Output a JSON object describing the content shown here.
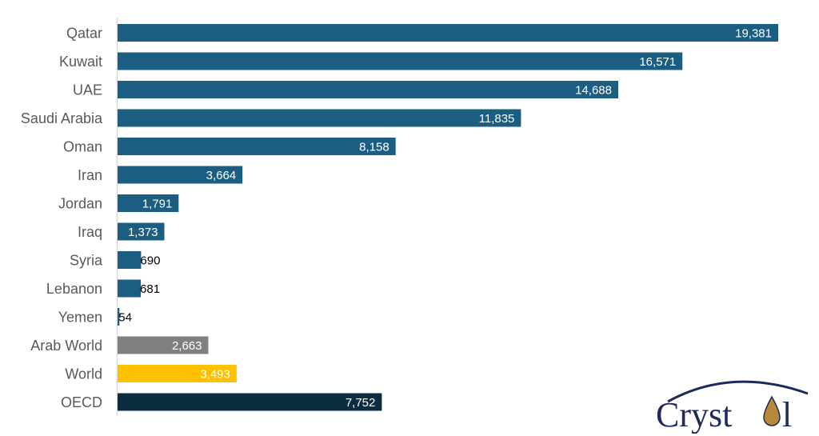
{
  "chart_data": {
    "type": "bar",
    "orientation": "horizontal",
    "title": "",
    "xlabel": "",
    "ylabel": "",
    "categories": [
      "Qatar",
      "Kuwait",
      "UAE",
      "Saudi Arabia",
      "Oman",
      "Iran",
      "Jordan",
      "Iraq",
      "Syria",
      "Lebanon",
      "Yemen",
      "Arab World",
      "World",
      "OECD"
    ],
    "values": [
      19381,
      16571,
      14688,
      11835,
      8158,
      3664,
      1791,
      1373,
      690,
      681,
      54,
      2663,
      3493,
      7752
    ],
    "value_labels": [
      "19,381",
      "16,571",
      "14,688",
      "11,835",
      "8,158",
      "3,664",
      "1,791",
      "1,373",
      "690",
      "681",
      "54",
      "2,663",
      "3,493",
      "7,752"
    ],
    "colors": [
      "#1b5e82",
      "#1b5e82",
      "#1b5e82",
      "#1b5e82",
      "#1b5e82",
      "#1b5e82",
      "#1b5e82",
      "#1b5e82",
      "#1b5e82",
      "#1b5e82",
      "#1b5e82",
      "#808080",
      "#ffc000",
      "#0c2d40"
    ],
    "xlim": [
      0,
      19381
    ],
    "grid": false,
    "legend": "none"
  },
  "logo": {
    "text": "Crystol",
    "text_color": "#1f2a5c"
  }
}
